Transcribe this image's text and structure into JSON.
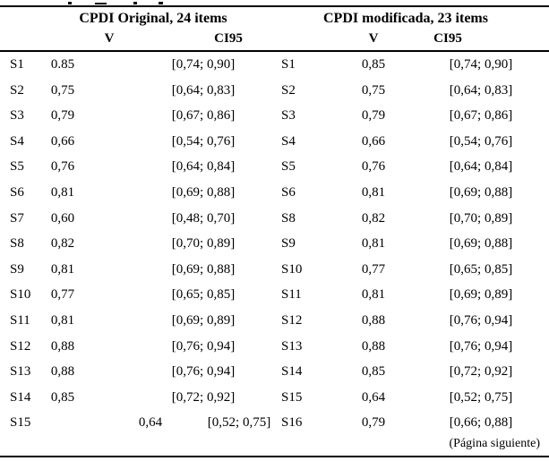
{
  "colors": {
    "background": "#ffffff",
    "text": "#000000",
    "rule": "#000000"
  },
  "table": {
    "left_group": {
      "title": "CPDI Original, 24 items",
      "col_v": "V",
      "col_ci": "CI95"
    },
    "right_group": {
      "title": "CPDI modificada, 23 items",
      "col_v": "V",
      "col_ci": "CI95"
    },
    "rows": [
      {
        "left": {
          "item": "S1",
          "v": "0.85",
          "ci": "[0,74; 0,90]"
        },
        "right": {
          "item": "S1",
          "v": "0,85",
          "ci": "[0,74; 0,90]"
        }
      },
      {
        "left": {
          "item": "S2",
          "v": "0,75",
          "ci": "[0,64; 0,83]"
        },
        "right": {
          "item": "S2",
          "v": "0,75",
          "ci": "[0,64; 0,83]"
        }
      },
      {
        "left": {
          "item": "S3",
          "v": "0,79",
          "ci": "[0,67; 0,86]"
        },
        "right": {
          "item": "S3",
          "v": "0,79",
          "ci": "[0,67; 0,86]"
        }
      },
      {
        "left": {
          "item": "S4",
          "v": "0,66",
          "ci": "[0,54; 0,76]"
        },
        "right": {
          "item": "S4",
          "v": "0,66",
          "ci": "[0,54; 0,76]"
        }
      },
      {
        "left": {
          "item": "S5",
          "v": "0,76",
          "ci": "[0,64; 0,84]"
        },
        "right": {
          "item": "S5",
          "v": "0,76",
          "ci": "[0,64; 0,84]"
        }
      },
      {
        "left": {
          "item": "S6",
          "v": "0,81",
          "ci": "[0,69; 0,88]"
        },
        "right": {
          "item": "S6",
          "v": "0,81",
          "ci": "[0,69; 0,88]"
        }
      },
      {
        "left": {
          "item": "S7",
          "v": "0,60",
          "ci": "[0,48; 0,70]"
        },
        "right": {
          "item": "S8",
          "v": "0,82",
          "ci": "[0,70; 0,89]"
        }
      },
      {
        "left": {
          "item": "S8",
          "v": "0,82",
          "ci": "[0,70; 0,89]"
        },
        "right": {
          "item": "S9",
          "v": "0,81",
          "ci": "[0,69; 0,88]"
        }
      },
      {
        "left": {
          "item": "S9",
          "v": "0,81",
          "ci": "[0,69; 0,88]"
        },
        "right": {
          "item": "S10",
          "v": "0,77",
          "ci": "[0,65; 0,85]"
        }
      },
      {
        "left": {
          "item": "S10",
          "v": "0,77",
          "ci": "[0,65; 0,85]"
        },
        "right": {
          "item": "S11",
          "v": "0,81",
          "ci": "[0,69; 0,89]"
        }
      },
      {
        "left": {
          "item": "S11",
          "v": "0,81",
          "ci": "[0,69; 0,89]"
        },
        "right": {
          "item": "S12",
          "v": "0,88",
          "ci": "[0,76; 0,94]"
        }
      },
      {
        "left": {
          "item": "S12",
          "v": "0,88",
          "ci": "[0,76; 0,94]"
        },
        "right": {
          "item": "S13",
          "v": "0,88",
          "ci": "[0,76; 0,94]"
        }
      },
      {
        "left": {
          "item": "S13",
          "v": "0,88",
          "ci": "[0,76; 0,94]"
        },
        "right": {
          "item": "S14",
          "v": "0,85",
          "ci": "[0,72; 0,92]"
        }
      },
      {
        "left": {
          "item": "S14",
          "v": "0,85",
          "ci": "[0,72; 0,92]"
        },
        "right": {
          "item": "S15",
          "v": "0,64",
          "ci": "[0,52; 0,75]"
        }
      },
      {
        "left": {
          "item": "S15",
          "v": "0,64",
          "ci": "[0,52; 0,75]",
          "shifted": true
        },
        "right": {
          "item": "S16",
          "v": "0,79",
          "ci": "[0,66; 0,88]"
        }
      }
    ],
    "footer_note": "(Página siguiente)"
  }
}
